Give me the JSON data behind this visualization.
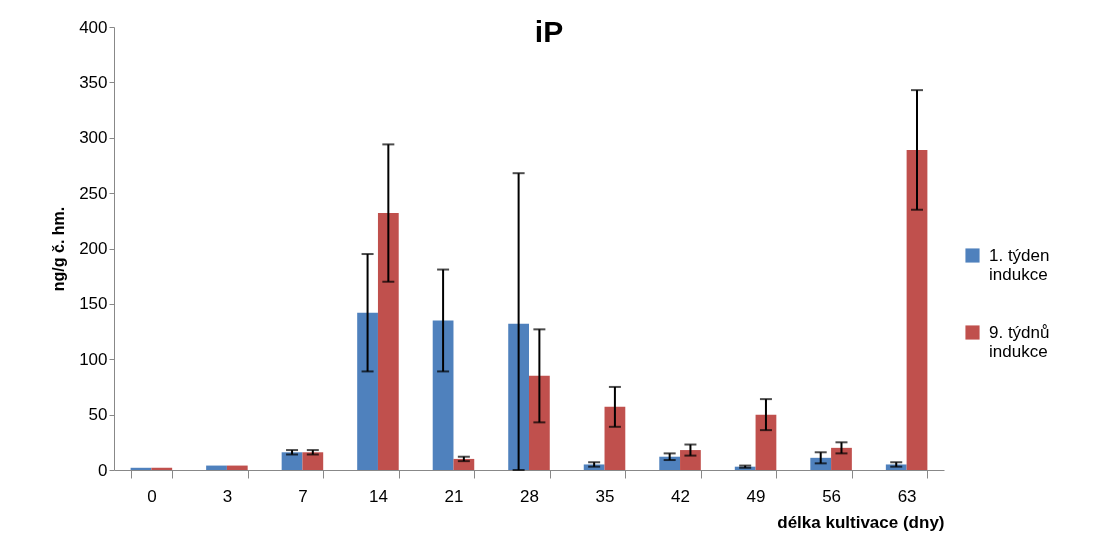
{
  "chart_data": {
    "type": "bar",
    "title": "iP",
    "xlabel": "délka kultivace (dny)",
    "ylabel": "ng/g č. hm.",
    "categories": [
      "0",
      "3",
      "7",
      "14",
      "21",
      "28",
      "35",
      "42",
      "49",
      "56",
      "63"
    ],
    "series": [
      {
        "name": "1. týden indukce",
        "color": "#4f81bd",
        "values": [
          2,
          4,
          16,
          142,
          135,
          132,
          5,
          12,
          3,
          11,
          5
        ],
        "errors": [
          null,
          null,
          2,
          53,
          46,
          [
            0,
            268
          ],
          2,
          3,
          1,
          5,
          2
        ]
      },
      {
        "name": "9. týdnů indukce",
        "color": "#c0504d",
        "values": [
          2,
          4,
          16,
          232,
          10,
          85,
          57,
          18,
          50,
          20,
          289
        ],
        "errors": [
          null,
          null,
          2,
          62,
          2,
          42,
          18,
          5,
          14,
          5,
          54
        ]
      }
    ],
    "ylim": [
      0,
      400
    ],
    "yticks": [
      0,
      50,
      100,
      150,
      200,
      250,
      300,
      350,
      400
    ],
    "grid": false,
    "legend": "right"
  }
}
